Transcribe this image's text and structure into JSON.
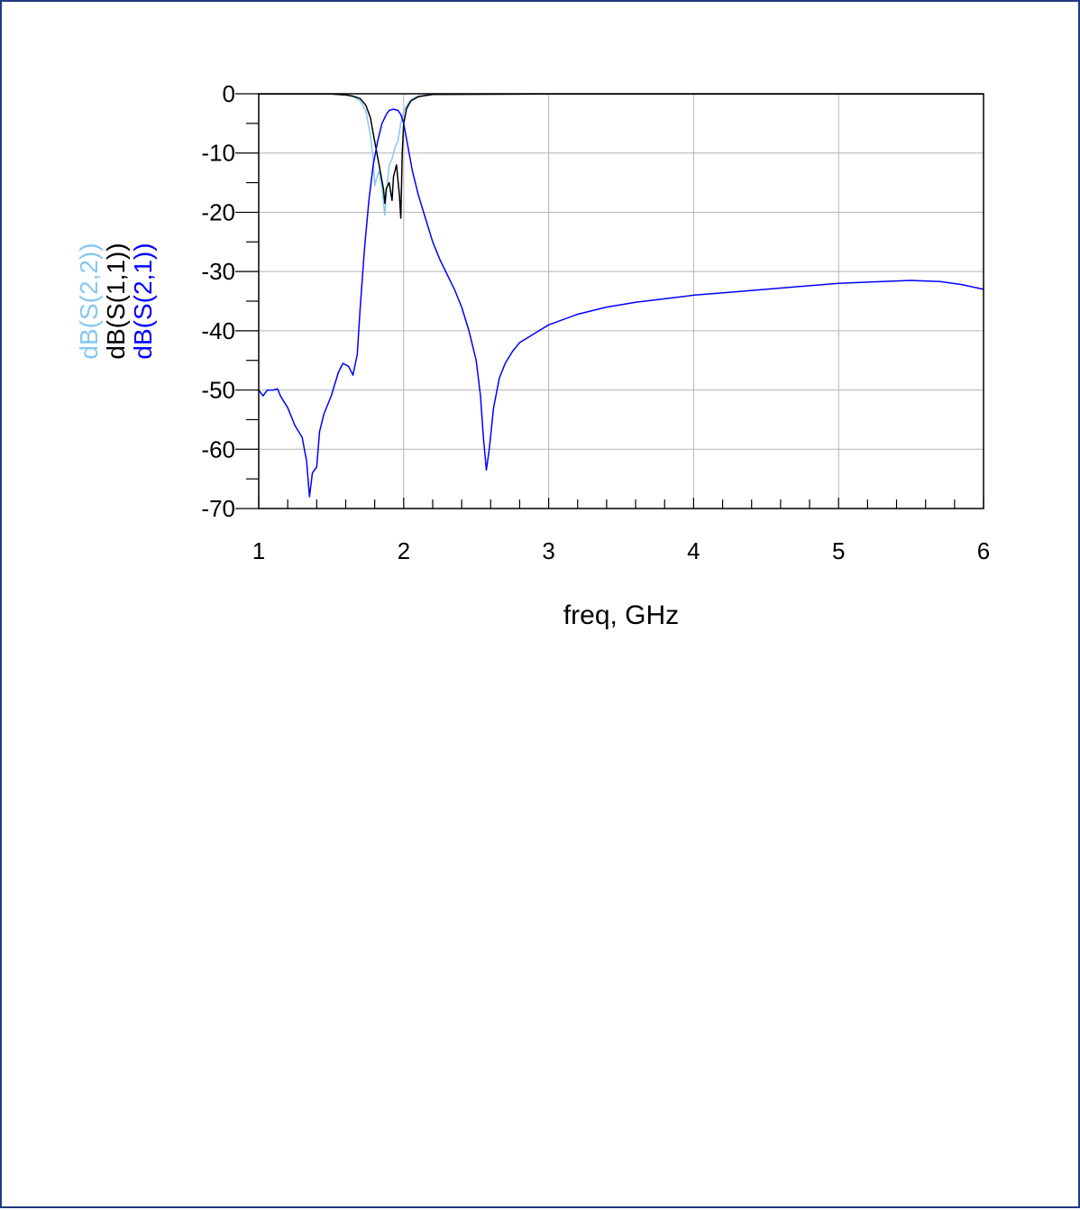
{
  "chart_data": {
    "type": "line",
    "title": "",
    "xlabel": "freq, GHz",
    "ylabel": "",
    "xlim": [
      1,
      6
    ],
    "ylim": [
      -70,
      0
    ],
    "x_ticks": [
      1,
      2,
      3,
      4,
      5,
      6
    ],
    "y_ticks": [
      0,
      -10,
      -20,
      -30,
      -40,
      -50,
      -60,
      -70
    ],
    "grid": true,
    "legend_placement": "left, vertical",
    "series": [
      {
        "name": "dB(S(2,2))",
        "color": "#87c8f0",
        "points": [
          [
            1.0,
            -0.05
          ],
          [
            1.5,
            -0.05
          ],
          [
            1.6,
            -0.2
          ],
          [
            1.65,
            -0.5
          ],
          [
            1.7,
            -1.2
          ],
          [
            1.74,
            -3
          ],
          [
            1.77,
            -7
          ],
          [
            1.79,
            -11
          ],
          [
            1.8,
            -15.5
          ],
          [
            1.81,
            -14.5
          ],
          [
            1.83,
            -13
          ],
          [
            1.85,
            -16
          ],
          [
            1.87,
            -20.5
          ],
          [
            1.88,
            -17
          ],
          [
            1.9,
            -12
          ],
          [
            1.92,
            -11
          ],
          [
            1.94,
            -9
          ],
          [
            1.96,
            -8
          ],
          [
            1.98,
            -5
          ],
          [
            2.0,
            -3
          ],
          [
            2.02,
            -2
          ],
          [
            2.05,
            -1
          ],
          [
            2.1,
            -0.4
          ],
          [
            2.2,
            -0.1
          ],
          [
            3.0,
            -0.05
          ],
          [
            6.0,
            -0.05
          ]
        ]
      },
      {
        "name": "dB(S(1,1))",
        "color": "#000000",
        "points": [
          [
            1.0,
            -0.05
          ],
          [
            1.5,
            -0.05
          ],
          [
            1.6,
            -0.2
          ],
          [
            1.65,
            -0.4
          ],
          [
            1.7,
            -0.8
          ],
          [
            1.74,
            -2
          ],
          [
            1.77,
            -4
          ],
          [
            1.8,
            -8
          ],
          [
            1.83,
            -12
          ],
          [
            1.86,
            -16
          ],
          [
            1.87,
            -18.5
          ],
          [
            1.88,
            -16
          ],
          [
            1.9,
            -15
          ],
          [
            1.92,
            -18
          ],
          [
            1.93,
            -14
          ],
          [
            1.95,
            -12
          ],
          [
            1.97,
            -17
          ],
          [
            1.98,
            -21
          ],
          [
            1.99,
            -10
          ],
          [
            2.0,
            -5
          ],
          [
            2.02,
            -2.5
          ],
          [
            2.05,
            -1.2
          ],
          [
            2.1,
            -0.5
          ],
          [
            2.2,
            -0.1
          ],
          [
            3.0,
            -0.05
          ],
          [
            6.0,
            -0.05
          ]
        ]
      },
      {
        "name": "dB(S(2,1))",
        "color": "#0000ff",
        "points": [
          [
            1.0,
            -50
          ],
          [
            1.03,
            -51
          ],
          [
            1.06,
            -50
          ],
          [
            1.1,
            -50
          ],
          [
            1.13,
            -49.8
          ],
          [
            1.15,
            -51
          ],
          [
            1.2,
            -53
          ],
          [
            1.25,
            -56
          ],
          [
            1.3,
            -58
          ],
          [
            1.33,
            -62
          ],
          [
            1.35,
            -68
          ],
          [
            1.37,
            -64
          ],
          [
            1.4,
            -63
          ],
          [
            1.42,
            -57
          ],
          [
            1.45,
            -54
          ],
          [
            1.5,
            -51
          ],
          [
            1.55,
            -47
          ],
          [
            1.58,
            -45.5
          ],
          [
            1.62,
            -46
          ],
          [
            1.65,
            -47.5
          ],
          [
            1.68,
            -44
          ],
          [
            1.7,
            -36
          ],
          [
            1.73,
            -26
          ],
          [
            1.76,
            -18
          ],
          [
            1.79,
            -12
          ],
          [
            1.82,
            -8
          ],
          [
            1.85,
            -5
          ],
          [
            1.88,
            -3.5
          ],
          [
            1.9,
            -2.8
          ],
          [
            1.93,
            -2.6
          ],
          [
            1.96,
            -2.8
          ],
          [
            1.98,
            -3.5
          ],
          [
            2.0,
            -5
          ],
          [
            2.03,
            -9
          ],
          [
            2.06,
            -13
          ],
          [
            2.1,
            -17
          ],
          [
            2.15,
            -21
          ],
          [
            2.2,
            -25
          ],
          [
            2.25,
            -28
          ],
          [
            2.3,
            -30.5
          ],
          [
            2.35,
            -33
          ],
          [
            2.4,
            -36
          ],
          [
            2.45,
            -40
          ],
          [
            2.5,
            -45
          ],
          [
            2.53,
            -51
          ],
          [
            2.55,
            -58
          ],
          [
            2.57,
            -63.5
          ],
          [
            2.59,
            -60
          ],
          [
            2.62,
            -53
          ],
          [
            2.66,
            -48
          ],
          [
            2.7,
            -45.5
          ],
          [
            2.75,
            -43.5
          ],
          [
            2.8,
            -42
          ],
          [
            2.9,
            -40.5
          ],
          [
            3.0,
            -39
          ],
          [
            3.2,
            -37.2
          ],
          [
            3.4,
            -36
          ],
          [
            3.6,
            -35.2
          ],
          [
            3.8,
            -34.6
          ],
          [
            4.0,
            -34
          ],
          [
            4.3,
            -33.4
          ],
          [
            4.6,
            -32.8
          ],
          [
            5.0,
            -32
          ],
          [
            5.3,
            -31.7
          ],
          [
            5.5,
            -31.5
          ],
          [
            5.7,
            -31.7
          ],
          [
            5.85,
            -32.2
          ],
          [
            6.0,
            -33
          ]
        ]
      }
    ]
  }
}
